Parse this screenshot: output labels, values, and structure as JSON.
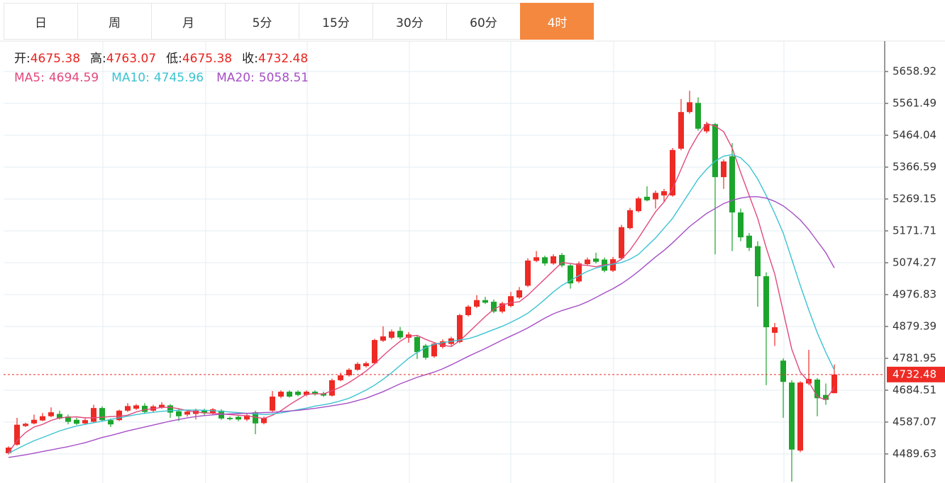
{
  "tabs": {
    "items": [
      "日",
      "周",
      "月",
      "5分",
      "15分",
      "30分",
      "60分",
      "4时"
    ],
    "active": 7
  },
  "chart_data": {
    "type": "candlestick",
    "header": {
      "open_label": "开:",
      "high_label": "高:",
      "low_label": "低:",
      "close_label": "收:"
    },
    "up_color": "#ee2a24",
    "down_color": "#1ca52c",
    "ylim": [
      4400.8,
      5752.0
    ],
    "yticks": [
      5658.92,
      5561.49,
      5464.04,
      5366.59,
      5269.15,
      5171.71,
      5074.27,
      4976.83,
      4879.39,
      4781.95,
      4684.51,
      4587.07,
      4489.63
    ],
    "grid": true,
    "candles": [
      [
        4492,
        4513,
        4488,
        4509
      ],
      [
        4518,
        4600,
        4515,
        4579
      ],
      [
        4575,
        4585,
        4572,
        4582
      ],
      [
        4583,
        4610,
        4580,
        4594
      ],
      [
        4592,
        4615,
        4590,
        4605
      ],
      [
        4605,
        4632,
        4602,
        4617
      ],
      [
        4612,
        4622,
        4595,
        4598
      ],
      [
        4604,
        4610,
        4580,
        4588
      ],
      [
        4594,
        4600,
        4578,
        4582
      ],
      [
        4583,
        4598,
        4578,
        4593
      ],
      [
        4588,
        4640,
        4585,
        4630
      ],
      [
        4630,
        4635,
        4590,
        4593
      ],
      [
        4593,
        4598,
        4572,
        4580
      ],
      [
        4593,
        4625,
        4590,
        4622
      ],
      [
        4622,
        4645,
        4618,
        4636
      ],
      [
        4628,
        4642,
        4624,
        4638
      ],
      [
        4637,
        4645,
        4612,
        4618
      ],
      [
        4622,
        4640,
        4618,
        4635
      ],
      [
        4632,
        4648,
        4628,
        4640
      ],
      [
        4638,
        4642,
        4600,
        4616
      ],
      [
        4620,
        4628,
        4590,
        4605
      ],
      [
        4610,
        4625,
        4604,
        4619
      ],
      [
        4612,
        4628,
        4595,
        4622
      ],
      [
        4622,
        4628,
        4608,
        4614
      ],
      [
        4613,
        4630,
        4608,
        4626
      ],
      [
        4622,
        4626,
        4594,
        4598
      ],
      [
        4600,
        4604,
        4592,
        4596
      ],
      [
        4603,
        4608,
        4590,
        4595
      ],
      [
        4595,
        4614,
        4590,
        4608
      ],
      [
        4617,
        4622,
        4550,
        4583
      ],
      [
        4584,
        4604,
        4580,
        4600
      ],
      [
        4622,
        4682,
        4618,
        4665
      ],
      [
        4665,
        4684,
        4660,
        4680
      ],
      [
        4680,
        4684,
        4662,
        4665
      ],
      [
        4680,
        4684,
        4666,
        4670
      ],
      [
        4670,
        4684,
        4666,
        4680
      ],
      [
        4680,
        4684,
        4668,
        4672
      ],
      [
        4675,
        4680,
        4664,
        4668
      ],
      [
        4668,
        4720,
        4665,
        4715
      ],
      [
        4715,
        4738,
        4712,
        4730
      ],
      [
        4730,
        4752,
        4726,
        4747
      ],
      [
        4747,
        4770,
        4744,
        4765
      ],
      [
        4758,
        4772,
        4754,
        4767
      ],
      [
        4767,
        4842,
        4764,
        4838
      ],
      [
        4836,
        4880,
        4832,
        4849
      ],
      [
        4845,
        4870,
        4840,
        4864
      ],
      [
        4866,
        4878,
        4840,
        4846
      ],
      [
        4845,
        4862,
        4830,
        4855
      ],
      [
        4847,
        4852,
        4780,
        4801
      ],
      [
        4821,
        4826,
        4778,
        4784
      ],
      [
        4788,
        4832,
        4784,
        4827
      ],
      [
        4817,
        4840,
        4812,
        4834
      ],
      [
        4826,
        4848,
        4820,
        4843
      ],
      [
        4832,
        4918,
        4828,
        4914
      ],
      [
        4914,
        4945,
        4910,
        4940
      ],
      [
        4940,
        4975,
        4936,
        4960
      ],
      [
        4960,
        4970,
        4948,
        4952
      ],
      [
        4955,
        4962,
        4920,
        4925
      ],
      [
        4925,
        4955,
        4920,
        4950
      ],
      [
        4942,
        4985,
        4938,
        4972
      ],
      [
        4968,
        5000,
        4964,
        4990
      ],
      [
        5004,
        5088,
        5000,
        5081
      ],
      [
        5080,
        5110,
        5076,
        5091
      ],
      [
        5091,
        5096,
        5065,
        5072
      ],
      [
        5072,
        5100,
        5068,
        5094
      ],
      [
        5098,
        5104,
        5060,
        5066
      ],
      [
        5066,
        5070,
        4995,
        5011
      ],
      [
        5017,
        5078,
        5012,
        5072
      ],
      [
        5070,
        5090,
        5066,
        5084
      ],
      [
        5087,
        5105,
        5072,
        5077
      ],
      [
        5084,
        5090,
        5045,
        5050
      ],
      [
        5050,
        5092,
        5046,
        5085
      ],
      [
        5088,
        5190,
        5084,
        5183
      ],
      [
        5180,
        5242,
        5176,
        5235
      ],
      [
        5232,
        5276,
        5228,
        5271
      ],
      [
        5276,
        5308,
        5262,
        5265
      ],
      [
        5268,
        5295,
        5240,
        5288
      ],
      [
        5280,
        5300,
        5260,
        5293
      ],
      [
        5280,
        5425,
        5276,
        5419
      ],
      [
        5423,
        5575,
        5418,
        5535
      ],
      [
        5535,
        5600,
        5530,
        5565
      ],
      [
        5563,
        5580,
        5478,
        5484
      ],
      [
        5476,
        5505,
        5470,
        5498
      ],
      [
        5498,
        5502,
        5100,
        5336
      ],
      [
        5336,
        5390,
        5300,
        5384
      ],
      [
        5400,
        5440,
        5110,
        5228
      ],
      [
        5228,
        5240,
        5140,
        5152
      ],
      [
        5157,
        5165,
        5110,
        5120
      ],
      [
        5125,
        5140,
        4940,
        5033
      ],
      [
        5033,
        5045,
        4700,
        4877
      ],
      [
        4860,
        4890,
        4820,
        4877
      ],
      [
        4775,
        4782,
        4600,
        4710
      ],
      [
        4708,
        4715,
        4405,
        4503
      ],
      [
        4500,
        4712,
        4495,
        4708
      ],
      [
        4705,
        4808,
        4700,
        4719
      ],
      [
        4717,
        4722,
        4605,
        4660
      ],
      [
        4670,
        4705,
        4640,
        4655
      ],
      [
        4675.38,
        4763.07,
        4675.38,
        4732.48
      ]
    ],
    "series": [
      {
        "name": "MA5:",
        "color": "#e2497d",
        "values": [
          4494,
          4530,
          4555,
          4572,
          4580,
          4592,
          4600,
          4602,
          4603,
          4600,
          4600,
          4602,
          4604,
          4605,
          4608,
          4618,
          4625,
          4628,
          4632,
          4632,
          4628,
          4622,
          4618,
          4615,
          4614,
          4612,
          4610,
          4608,
          4606,
          4602,
          4598,
          4608,
          4622,
          4640,
          4656,
          4672,
          4674,
          4673,
          4683,
          4694,
          4708,
          4725,
          4743,
          4765,
          4790,
          4813,
          4834,
          4850,
          4852,
          4840,
          4830,
          4822,
          4818,
          4836,
          4860,
          4885,
          4910,
          4932,
          4945,
          4952,
          4955,
          4975,
          5000,
          5025,
          5050,
          5075,
          5072,
          5068,
          5066,
          5062,
          5068,
          5070,
          5085,
          5113,
          5150,
          5190,
          5230,
          5260,
          5300,
          5360,
          5420,
          5465,
          5500,
          5492,
          5475,
          5425,
          5350,
          5280,
          5210,
          5120,
          5040,
          4925,
          4810,
          4740,
          4710,
          4665,
          4655,
          4694.59
        ]
      },
      {
        "name": "MA10:",
        "color": "#3cc3d2",
        "values": [
          4492,
          4505,
          4518,
          4530,
          4540,
          4550,
          4560,
          4568,
          4575,
          4580,
          4585,
          4590,
          4595,
          4600,
          4605,
          4610,
          4614,
          4617,
          4620,
          4622,
          4623,
          4624,
          4624,
          4623,
          4622,
          4620,
          4618,
          4616,
          4614,
          4612,
          4610,
          4612,
          4615,
          4620,
          4625,
          4630,
          4636,
          4640,
          4645,
          4652,
          4660,
          4672,
          4685,
          4700,
          4718,
          4738,
          4760,
          4782,
          4800,
          4815,
          4825,
          4830,
          4834,
          4838,
          4842,
          4850,
          4860,
          4870,
          4880,
          4892,
          4905,
          4920,
          4940,
          4962,
          4985,
          5005,
          5020,
          5035,
          5048,
          5058,
          5065,
          5070,
          5075,
          5085,
          5100,
          5125,
          5150,
          5180,
          5210,
          5250,
          5290,
          5330,
          5360,
          5385,
          5400,
          5405,
          5395,
          5370,
          5330,
          5280,
          5225,
          5165,
          5085,
          5005,
          4930,
          4860,
          4800,
          4745.96
        ]
      },
      {
        "name": "MA20:",
        "color": "#a64fc6",
        "values": [
          4479,
          4483,
          4487,
          4492,
          4497,
          4502,
          4507,
          4512,
          4518,
          4524,
          4532,
          4540,
          4546,
          4553,
          4560,
          4566,
          4572,
          4578,
          4584,
          4590,
          4595,
          4600,
          4604,
          4607,
          4609,
          4611,
          4612,
          4613,
          4614,
          4615,
          4616,
          4617,
          4619,
          4621,
          4623,
          4626,
          4629,
          4633,
          4637,
          4641,
          4646,
          4653,
          4660,
          4670,
          4680,
          4692,
          4704,
          4714,
          4724,
          4732,
          4740,
          4750,
          4762,
          4775,
          4788,
          4800,
          4812,
          4825,
          4838,
          4850,
          4862,
          4875,
          4890,
          4905,
          4918,
          4928,
          4936,
          4944,
          4955,
          4968,
          4982,
          4995,
          5010,
          5028,
          5048,
          5070,
          5092,
          5112,
          5135,
          5160,
          5185,
          5205,
          5225,
          5240,
          5255,
          5265,
          5272,
          5276,
          5276,
          5272,
          5262,
          5248,
          5228,
          5205,
          5175,
          5140,
          5105,
          5058.51
        ]
      }
    ]
  }
}
